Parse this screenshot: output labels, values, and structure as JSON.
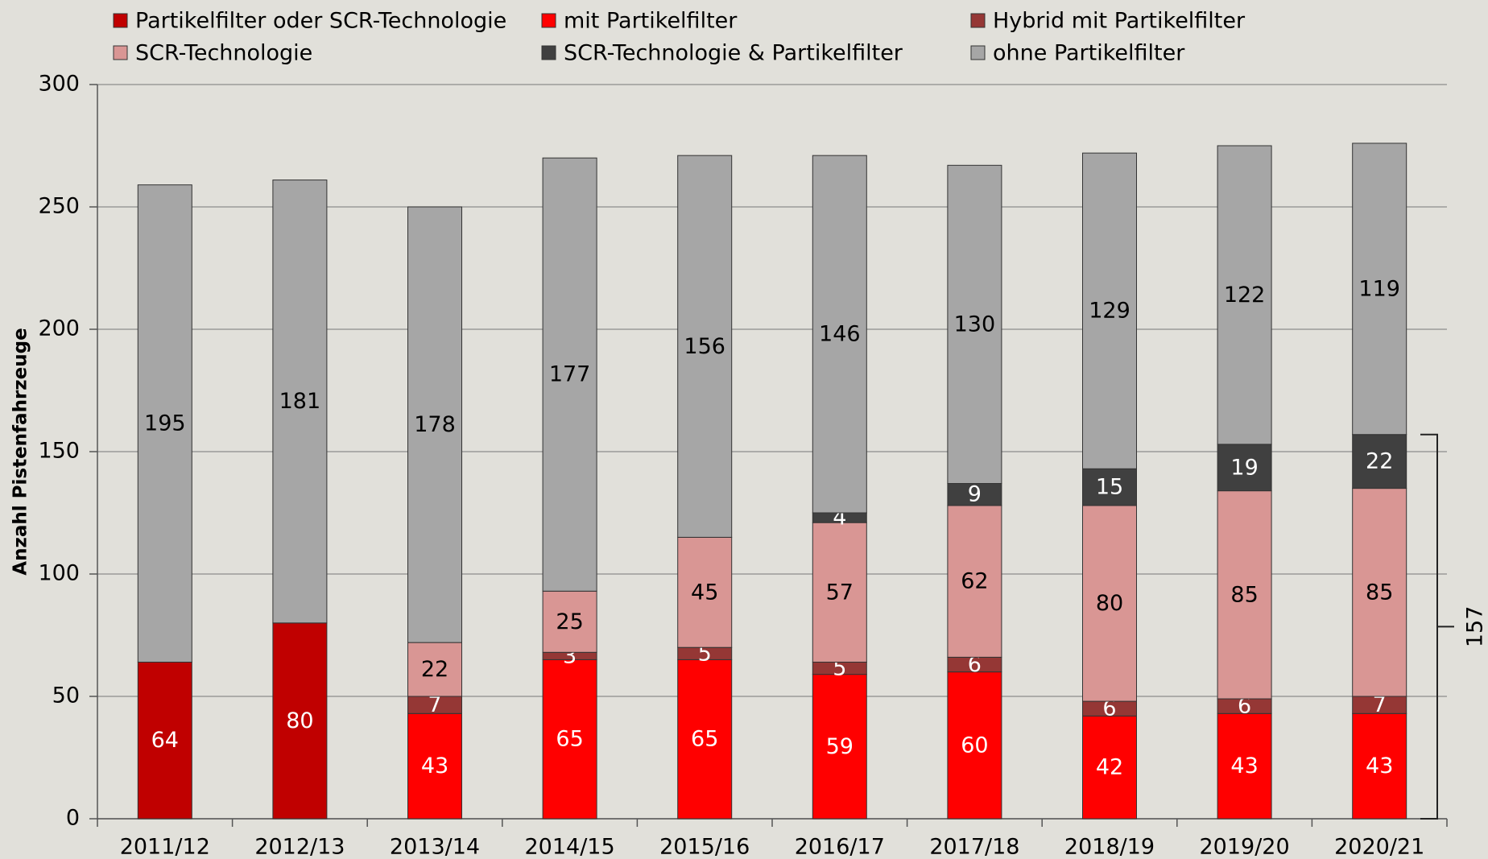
{
  "chart_data": {
    "type": "stacked_bar",
    "y_label": "Anzahl Pistenfahrzeuge",
    "categories": [
      "2011/12",
      "2012/13",
      "2013/14",
      "2014/15",
      "2015/16",
      "2016/17",
      "2017/18",
      "2018/19",
      "2019/20",
      "2020/21"
    ],
    "series": [
      {
        "name": "Partikelfilter oder SCR-Technologie",
        "color": "#c00000",
        "label_color": "#ffffff",
        "values": [
          64,
          80,
          null,
          null,
          null,
          null,
          null,
          null,
          null,
          null
        ]
      },
      {
        "name": "mit Partikelfilter",
        "color": "#ff0000",
        "label_color": "#ffffff",
        "values": [
          null,
          null,
          43,
          65,
          65,
          59,
          60,
          42,
          43,
          43
        ]
      },
      {
        "name": "Hybrid mit Partikelfilter",
        "color": "#953735",
        "label_color": "#ffffff",
        "values": [
          null,
          null,
          7,
          3,
          5,
          5,
          6,
          6,
          6,
          7
        ]
      },
      {
        "name": "SCR-Technologie",
        "color": "#d99694",
        "label_color": "#000000",
        "values": [
          null,
          null,
          22,
          25,
          45,
          57,
          62,
          80,
          85,
          85
        ]
      },
      {
        "name": "SCR-Technologie & Partikelfilter",
        "color": "#404040",
        "label_color": "#ffffff",
        "values": [
          null,
          null,
          null,
          null,
          null,
          4,
          9,
          15,
          19,
          22
        ]
      },
      {
        "name": "ohne Partikelfilter",
        "color": "#a6a6a6",
        "label_color": "#000000",
        "values": [
          195,
          181,
          178,
          177,
          156,
          146,
          130,
          129,
          122,
          119
        ]
      }
    ],
    "ylim": [
      0,
      300
    ],
    "yticks": [
      0,
      50,
      100,
      150,
      200,
      250,
      300
    ],
    "grid": true,
    "bracket": {
      "value": 157,
      "category_index": 9
    }
  }
}
